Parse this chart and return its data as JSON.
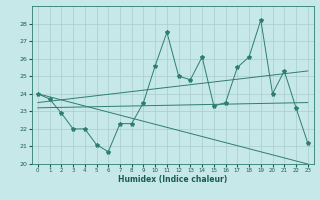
{
  "xlabel": "Humidex (Indice chaleur)",
  "xlim": [
    -0.5,
    23.5
  ],
  "ylim": [
    20,
    29
  ],
  "yticks": [
    20,
    21,
    22,
    23,
    24,
    25,
    26,
    27,
    28
  ],
  "xticks": [
    0,
    1,
    2,
    3,
    4,
    5,
    6,
    7,
    8,
    9,
    10,
    11,
    12,
    13,
    14,
    15,
    16,
    17,
    18,
    19,
    20,
    21,
    22,
    23
  ],
  "bg_color": "#c6e8e8",
  "grid_color": "#aacccc",
  "line_color": "#2e7d72",
  "series1": [
    24.0,
    23.7,
    22.9,
    22.0,
    22.0,
    21.1,
    20.7,
    22.3,
    22.3,
    23.5,
    25.6,
    27.5,
    25.0,
    24.8,
    26.1,
    23.3,
    23.5,
    25.5,
    26.1,
    28.2,
    24.0,
    25.3,
    23.2,
    21.2
  ],
  "series2_x": [
    0,
    23
  ],
  "series2_y": [
    24.0,
    20.0
  ],
  "series3_x": [
    0,
    23
  ],
  "series3_y": [
    23.5,
    25.3
  ],
  "series4_x": [
    0,
    23
  ],
  "series4_y": [
    23.2,
    23.5
  ]
}
